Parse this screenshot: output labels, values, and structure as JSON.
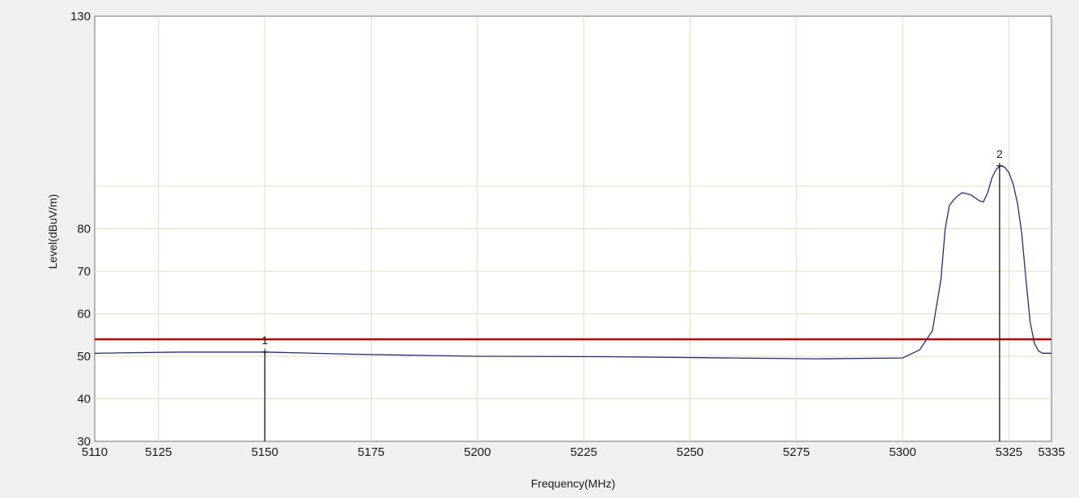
{
  "chart_data": {
    "type": "line",
    "title": "",
    "xlabel": "Frequency(MHz)",
    "ylabel": "Level(dBuV/m)",
    "xlim": [
      5110,
      5335
    ],
    "ylim": [
      30,
      130
    ],
    "x_ticks": [
      5110,
      5125,
      5150,
      5175,
      5200,
      5225,
      5250,
      5275,
      5300,
      5325,
      5335
    ],
    "y_ticks": [
      30,
      40,
      50,
      60,
      70,
      80,
      130
    ],
    "x_grid": [
      5125,
      5150,
      5175,
      5200,
      5225,
      5250,
      5275,
      5300,
      5325
    ],
    "y_grid": [
      40,
      50,
      60,
      70,
      80,
      90
    ],
    "grid": true,
    "limit_line": {
      "y": 54,
      "color": "#c00000"
    },
    "series": [
      {
        "color": "#1f2a8c",
        "x": [
          5110,
          5130,
          5150,
          5170,
          5200,
          5230,
          5260,
          5280,
          5300,
          5304,
          5307,
          5309,
          5310,
          5311,
          5312,
          5313,
          5314,
          5316,
          5318,
          5319,
          5320,
          5321,
          5322,
          5323,
          5324,
          5325,
          5326,
          5327,
          5328,
          5329,
          5330,
          5331,
          5332,
          5333,
          5335
        ],
        "y": [
          50.7,
          51.0,
          51.0,
          50.5,
          50.0,
          49.9,
          49.6,
          49.4,
          49.6,
          51.5,
          56,
          68,
          80,
          85.5,
          86.8,
          87.8,
          88.5,
          88.0,
          86.6,
          86.3,
          88.5,
          92.0,
          94.0,
          94.8,
          94.5,
          93.2,
          90.5,
          86.0,
          79,
          68,
          58,
          53,
          51.2,
          50.7,
          50.7
        ]
      }
    ],
    "markers": [
      {
        "label": "1",
        "x": 5150,
        "y": 51.0
      },
      {
        "label": "2",
        "x": 5322.8,
        "y": 94.8
      }
    ]
  }
}
